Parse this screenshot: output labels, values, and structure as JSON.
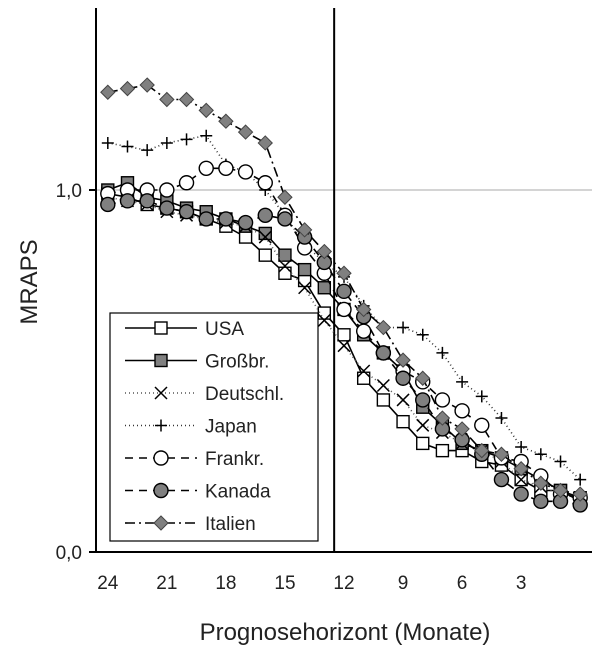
{
  "chart_data": {
    "type": "line",
    "title": "",
    "xlabel": "Prognosehorizont (Monate)",
    "ylabel": "MRAPS",
    "x_reversed": true,
    "xlim": [
      24.6,
      -0.6
    ],
    "ylim": [
      0.0,
      1.5
    ],
    "x_ticks": [
      24,
      21,
      18,
      15,
      12,
      9,
      6,
      3
    ],
    "x_tick_labels": [
      "24",
      "21",
      "18",
      "15",
      "12",
      "9",
      "6",
      "3"
    ],
    "y_ticks": [
      0.0,
      1.0
    ],
    "y_tick_labels": [
      "0,0",
      "1,0"
    ],
    "reference_line_y": 1.0,
    "vertical_line_x": 12.5,
    "grid": false,
    "legend_position": "lower-left",
    "x": [
      24,
      23,
      22,
      21,
      20,
      19,
      18,
      17,
      16,
      15,
      14,
      13,
      12,
      11,
      10,
      9,
      8,
      7,
      6,
      5,
      4,
      3,
      2,
      1,
      0
    ],
    "series": [
      {
        "name": "USA",
        "color": "#000000",
        "dash": "solid",
        "marker": "square-open",
        "values": [
          0.99,
          0.98,
          0.96,
          0.95,
          0.94,
          0.92,
          0.9,
          0.87,
          0.82,
          0.77,
          0.75,
          0.66,
          0.6,
          0.48,
          0.42,
          0.36,
          0.3,
          0.28,
          0.28,
          0.25,
          0.24,
          0.2,
          0.17,
          0.17,
          0.15
        ]
      },
      {
        "name": "Großbr.",
        "color": "#000000",
        "dash": "solid",
        "marker": "square-filled",
        "values": [
          1.0,
          1.02,
          0.98,
          0.97,
          0.95,
          0.94,
          0.92,
          0.9,
          0.88,
          0.82,
          0.78,
          0.73,
          0.67,
          0.6,
          0.55,
          0.5,
          0.4,
          0.35,
          0.3,
          0.28,
          0.26,
          0.23,
          0.2,
          0.17,
          0.14
        ]
      },
      {
        "name": "Deutschl.",
        "color": "#555555",
        "dash": "1,3",
        "marker": "x",
        "values": [
          0.98,
          0.97,
          0.96,
          0.94,
          0.93,
          0.92,
          0.91,
          0.9,
          0.87,
          0.79,
          0.73,
          0.64,
          0.57,
          0.5,
          0.46,
          0.42,
          0.35,
          0.33,
          0.3,
          0.28,
          0.25,
          0.2,
          0.18,
          0.16,
          0.15
        ]
      },
      {
        "name": "Japan",
        "color": "#333333",
        "dash": "1,3",
        "marker": "plus",
        "values": [
          1.13,
          1.12,
          1.11,
          1.13,
          1.14,
          1.15,
          1.07,
          1.05,
          1.0,
          0.93,
          0.85,
          0.8,
          0.76,
          0.68,
          0.62,
          0.62,
          0.6,
          0.55,
          0.47,
          0.43,
          0.37,
          0.29,
          0.27,
          0.25,
          0.2
        ]
      },
      {
        "name": "Frankr.",
        "color": "#000000",
        "dash": "8,6",
        "marker": "circle-open",
        "values": [
          0.99,
          1.0,
          1.0,
          1.0,
          1.02,
          1.06,
          1.06,
          1.05,
          1.02,
          0.93,
          0.84,
          0.77,
          0.67,
          0.61,
          0.55,
          0.5,
          0.47,
          0.42,
          0.39,
          0.35,
          0.26,
          0.25,
          0.21,
          0.16,
          0.15
        ]
      },
      {
        "name": "Kanada",
        "color": "#000000",
        "dash": "8,6",
        "marker": "circle-filled",
        "values": [
          0.96,
          0.97,
          0.97,
          0.95,
          0.94,
          0.92,
          0.92,
          0.91,
          0.93,
          0.92,
          0.87,
          0.8,
          0.72,
          0.65,
          0.55,
          0.48,
          0.42,
          0.34,
          0.31,
          0.27,
          0.2,
          0.16,
          0.14,
          0.14,
          0.13
        ]
      },
      {
        "name": "Italien",
        "color": "#000000",
        "dash": "10,4,2,4",
        "marker": "diamond-filled",
        "values": [
          1.27,
          1.28,
          1.29,
          1.25,
          1.25,
          1.22,
          1.19,
          1.16,
          1.13,
          0.98,
          0.89,
          0.83,
          0.77,
          0.67,
          0.62,
          0.53,
          0.48,
          0.37,
          0.34,
          0.28,
          0.27,
          0.23,
          0.19,
          0.17,
          0.16
        ]
      }
    ]
  }
}
